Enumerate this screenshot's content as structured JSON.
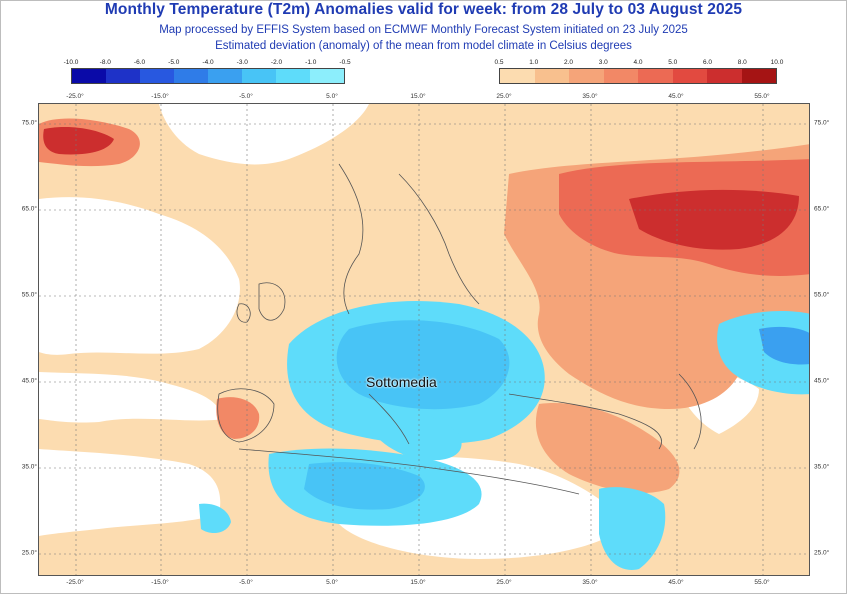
{
  "header": {
    "title": "Monthly Temperature (T2m) Anomalies valid for week: from 28 July to 03 August 2025",
    "subtitle_1": "Map processed by EFFIS System based on ECMWF Monthly Forecast System initiated on 23 July 2025",
    "subtitle_2": "Estimated deviation (anomaly) of the mean from model climate in Celsius degrees"
  },
  "legend": {
    "cold": {
      "labels": [
        "-10.0",
        "-8.0",
        "-6.0",
        "-5.0",
        "-4.0",
        "-3.0",
        "-2.0",
        "-1.0",
        "-0.5"
      ],
      "colors": [
        "#0a0aa8",
        "#1e32c8",
        "#2858e0",
        "#2f7ce8",
        "#3aa0f0",
        "#48c4f6",
        "#5edcfa",
        "#8ceefc"
      ]
    },
    "warm": {
      "labels": [
        "0.5",
        "1.0",
        "2.0",
        "3.0",
        "4.0",
        "5.0",
        "6.0",
        "8.0",
        "10.0"
      ],
      "colors": [
        "#fcdcb0",
        "#f8c08e",
        "#f5a479",
        "#f28866",
        "#ec6a54",
        "#e24a40",
        "#cc2e2e",
        "#a51414"
      ]
    }
  },
  "axes": {
    "lon_ticks": [
      "-25.0°",
      "-15.0°",
      "-5.0°",
      "5.0°",
      "15.0°",
      "25.0°",
      "35.0°",
      "45.0°",
      "55.0°"
    ],
    "lat_ticks": [
      "75.0°",
      "65.0°",
      "55.0°",
      "45.0°",
      "35.0°",
      "25.0°"
    ]
  },
  "map": {
    "annotation": "Sottomedia",
    "ocean_color": "#ffffff",
    "land_outline_color": "#555555"
  }
}
